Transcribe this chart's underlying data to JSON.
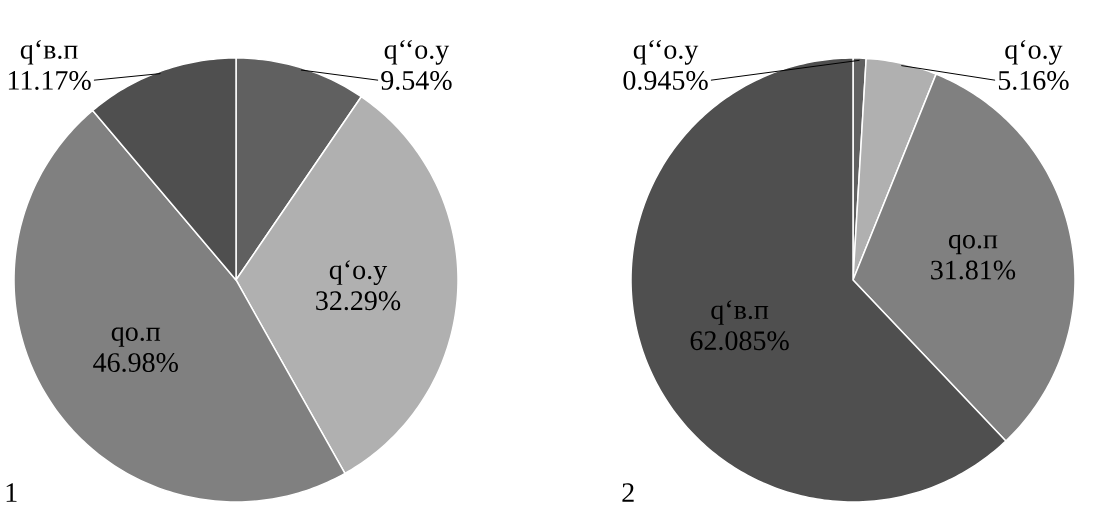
{
  "chart_data": [
    {
      "type": "pie",
      "title": "1",
      "categories": [
        "q‘‘о.у",
        "q‘о.у",
        "qо.п",
        "q‘в.п"
      ],
      "values": [
        9.54,
        32.29,
        46.98,
        11.17
      ],
      "colors": [
        "#606060",
        "#b0b0b0",
        "#808080",
        "#4f4f4f"
      ],
      "value_labels": [
        "9.54%",
        "32.29%",
        "46.98%",
        "11.17%"
      ]
    },
    {
      "type": "pie",
      "title": "2",
      "categories": [
        "q‘‘о.у",
        "q‘о.у",
        "qо.п",
        "q‘в.п"
      ],
      "values": [
        0.945,
        5.16,
        31.81,
        62.085
      ],
      "colors": [
        "#606060",
        "#b0b0b0",
        "#808080",
        "#4f4f4f"
      ],
      "value_labels": [
        "0.945%",
        "5.16%",
        "31.81%",
        "62.085%"
      ]
    }
  ]
}
